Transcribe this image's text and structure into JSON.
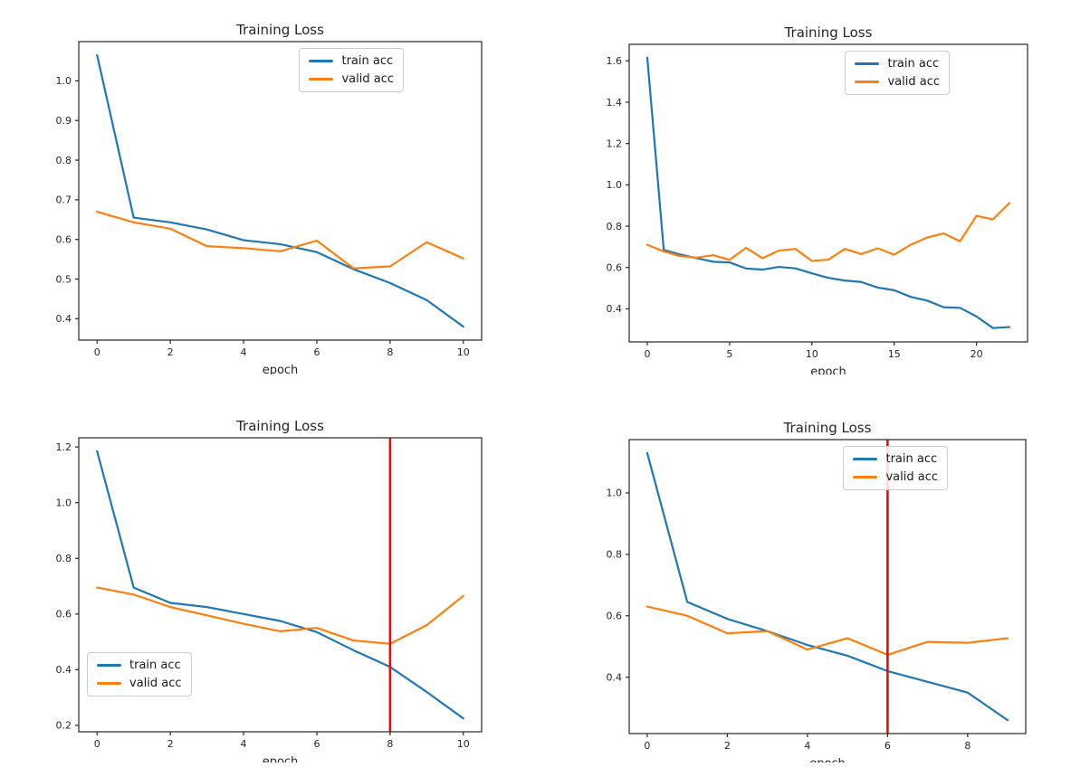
{
  "colors": {
    "train": "#1f77b4",
    "valid": "#ff7f0e",
    "vline": "#ff0000",
    "spine": "#262626",
    "text": "#262626"
  },
  "chart_data": [
    {
      "type": "line",
      "title": "Training Loss",
      "xlabel": "epoch",
      "legend_position": "upper-right",
      "grid": false,
      "x": [
        0,
        1,
        2,
        3,
        4,
        5,
        6,
        7,
        8,
        9,
        10
      ],
      "series": [
        {
          "name": "train acc",
          "color": "#1f77b4",
          "values": [
            1.065,
            0.655,
            0.643,
            0.625,
            0.598,
            0.588,
            0.568,
            0.525,
            0.49,
            0.447,
            0.38
          ]
        },
        {
          "name": "valid acc",
          "color": "#ff7f0e",
          "values": [
            0.67,
            0.643,
            0.627,
            0.583,
            0.578,
            0.57,
            0.597,
            0.527,
            0.532,
            0.593,
            0.552
          ]
        }
      ],
      "xlim": [
        -0.5,
        10.5
      ],
      "ylim": [
        0.346,
        1.099
      ],
      "xticks": [
        0,
        2,
        4,
        6,
        8,
        10
      ],
      "yticks": [
        0.4,
        0.5,
        0.6,
        0.7,
        0.8,
        0.9,
        1.0
      ],
      "vline": null
    },
    {
      "type": "line",
      "title": "Training Loss",
      "xlabel": "epoch",
      "legend_position": "upper-right",
      "grid": false,
      "x": [
        0,
        1,
        2,
        3,
        4,
        5,
        6,
        7,
        8,
        9,
        10,
        11,
        12,
        13,
        14,
        15,
        16,
        17,
        18,
        19,
        20,
        21,
        22
      ],
      "series": [
        {
          "name": "train acc",
          "color": "#1f77b4",
          "values": [
            1.615,
            0.685,
            0.663,
            0.645,
            0.628,
            0.625,
            0.595,
            0.59,
            0.603,
            0.596,
            0.572,
            0.55,
            0.537,
            0.53,
            0.503,
            0.49,
            0.458,
            0.44,
            0.408,
            0.405,
            0.363,
            0.307,
            0.312
          ]
        },
        {
          "name": "valid acc",
          "color": "#ff7f0e",
          "values": [
            0.71,
            0.678,
            0.655,
            0.648,
            0.66,
            0.637,
            0.695,
            0.645,
            0.682,
            0.69,
            0.632,
            0.638,
            0.69,
            0.665,
            0.693,
            0.662,
            0.71,
            0.745,
            0.765,
            0.727,
            0.85,
            0.833,
            0.912
          ]
        }
      ],
      "xlim": [
        -1.1,
        23.1
      ],
      "ylim": [
        0.24,
        1.68
      ],
      "xticks": [
        0,
        5,
        10,
        15,
        20
      ],
      "yticks": [
        0.4,
        0.6,
        0.8,
        1.0,
        1.2,
        1.4,
        1.6
      ],
      "vline": null
    },
    {
      "type": "line",
      "title": "Training Loss",
      "xlabel": "epoch",
      "legend_position": "lower-left",
      "grid": false,
      "x": [
        0,
        1,
        2,
        3,
        4,
        5,
        6,
        7,
        8,
        9,
        10
      ],
      "series": [
        {
          "name": "train acc",
          "color": "#1f77b4",
          "values": [
            1.185,
            0.695,
            0.64,
            0.625,
            0.6,
            0.575,
            0.535,
            0.47,
            0.41,
            0.32,
            0.225
          ]
        },
        {
          "name": "valid acc",
          "color": "#ff7f0e",
          "values": [
            0.695,
            0.67,
            0.625,
            0.595,
            0.565,
            0.538,
            0.55,
            0.505,
            0.493,
            0.56,
            0.665
          ]
        }
      ],
      "xlim": [
        -0.5,
        10.5
      ],
      "ylim": [
        0.177,
        1.233
      ],
      "xticks": [
        0,
        2,
        4,
        6,
        8,
        10
      ],
      "yticks": [
        0.2,
        0.4,
        0.6,
        0.8,
        1.0,
        1.2
      ],
      "vline": 8
    },
    {
      "type": "line",
      "title": "Training Loss",
      "xlabel": "epoch",
      "legend_position": "upper-right",
      "grid": false,
      "x": [
        0,
        1,
        2,
        3,
        4,
        5,
        6,
        7,
        8,
        9
      ],
      "series": [
        {
          "name": "train acc",
          "color": "#1f77b4",
          "values": [
            1.13,
            0.645,
            0.59,
            0.55,
            0.505,
            0.47,
            0.42,
            0.385,
            0.35,
            0.26
          ]
        },
        {
          "name": "valid acc",
          "color": "#ff7f0e",
          "values": [
            0.63,
            0.6,
            0.543,
            0.55,
            0.49,
            0.527,
            0.473,
            0.515,
            0.512,
            0.527
          ]
        }
      ],
      "xlim": [
        -0.45,
        9.45
      ],
      "ylim": [
        0.2165,
        1.1735
      ],
      "xticks": [
        0,
        2,
        4,
        6,
        8
      ],
      "yticks": [
        0.4,
        0.6,
        0.8,
        1.0
      ],
      "vline": 6
    }
  ]
}
